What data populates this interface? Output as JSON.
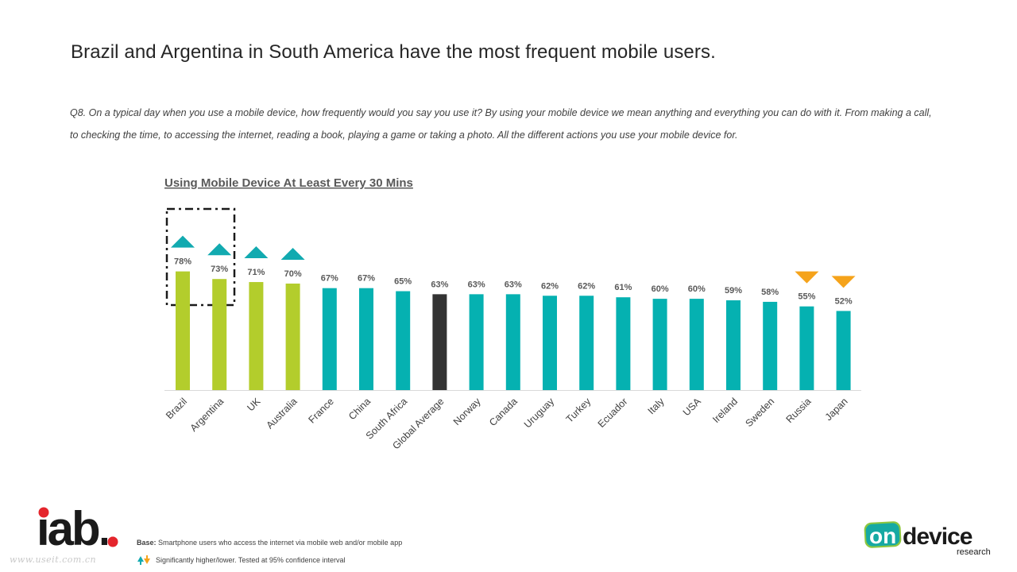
{
  "headline": "Brazil and Argentina in South America have the most frequent mobile users.",
  "question": "Q8. On a typical day when you use a mobile device, how frequently would you say you use it? By using your mobile device we mean anything and everything you can do with it. From making a call, to checking the time, to accessing the internet, reading a book, playing a game or taking a photo. All the different actions you use your mobile device for.",
  "chart_data": {
    "type": "bar",
    "title": "Using Mobile Device At Least Every 30 Mins",
    "categories": [
      "Brazil",
      "Argentina",
      "UK",
      "Australia",
      "France",
      "China",
      "South Africa",
      "Global Average",
      "Norway",
      "Canada",
      "Uruguay",
      "Turkey",
      "Ecuador",
      "Italy",
      "USA",
      "Ireland",
      "Sweden",
      "Russia",
      "Japan"
    ],
    "values": [
      78,
      73,
      71,
      70,
      67,
      67,
      65,
      63,
      63,
      63,
      62,
      62,
      61,
      60,
      60,
      59,
      58,
      55,
      52
    ],
    "value_labels": [
      "78%",
      "73%",
      "71%",
      "70%",
      "67%",
      "67%",
      "65%",
      "63%",
      "63%",
      "63%",
      "62%",
      "62%",
      "61%",
      "60%",
      "60%",
      "59%",
      "58%",
      "55%",
      "52%"
    ],
    "significance": [
      "higher",
      "higher",
      "higher",
      "higher",
      "none",
      "none",
      "none",
      "none",
      "none",
      "none",
      "none",
      "none",
      "none",
      "none",
      "none",
      "none",
      "none",
      "lower",
      "lower"
    ],
    "highlighted_categories": [
      "Brazil",
      "Argentina"
    ],
    "ylim": [
      0,
      100
    ],
    "grid": false,
    "colors": {
      "higher_bar": "#b3cd2c",
      "normal_bar": "#05b1b1",
      "average_bar": "#333333",
      "up_marker": "#12aab0",
      "down_marker": "#f5a31b"
    }
  },
  "footer": {
    "base_label": "Base:",
    "base_text": "Smartphone users who access the internet via mobile web and/or mobile app",
    "significance_text": "Significantly higher/lower. Tested at 95% confidence interval",
    "iab_logo": "iab.",
    "watermark": "www.useit.com.cn",
    "ondevice_logo_word1": "on",
    "ondevice_logo_word2": "device",
    "ondevice_logo_word3": "research"
  }
}
